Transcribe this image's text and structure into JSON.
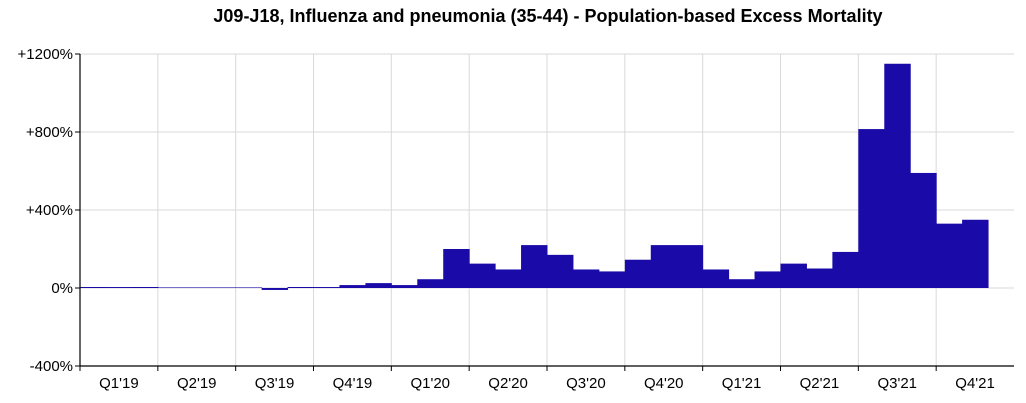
{
  "chart_data": {
    "type": "bar",
    "title": "J09-J18, Influenza and pneumonia (35-44) - Population-based Excess Mortality",
    "xlabel": "",
    "ylabel": "",
    "ylim": [
      -400,
      1200
    ],
    "y_ticks": [
      "+1200%",
      "+800%",
      "+400%",
      "0%",
      "-400%"
    ],
    "y_tick_values": [
      1200,
      800,
      400,
      0,
      -400
    ],
    "x_tick_labels": [
      "Q1'19",
      "Q2'19",
      "Q3'19",
      "Q4'19",
      "Q1'20",
      "Q2'20",
      "Q3'20",
      "Q4'20",
      "Q1'21",
      "Q2'21",
      "Q3'21",
      "Q4'21"
    ],
    "bars_per_quarter": 3,
    "values": [
      0,
      5,
      0,
      3,
      3,
      3,
      3,
      -10,
      0,
      5,
      15,
      25,
      15,
      45,
      200,
      125,
      95,
      220,
      170,
      95,
      85,
      145,
      220,
      220,
      95,
      45,
      85,
      125,
      100,
      185,
      815,
      1150,
      590,
      330,
      350
    ],
    "grid": true,
    "bar_color": "#1a0aa8"
  }
}
